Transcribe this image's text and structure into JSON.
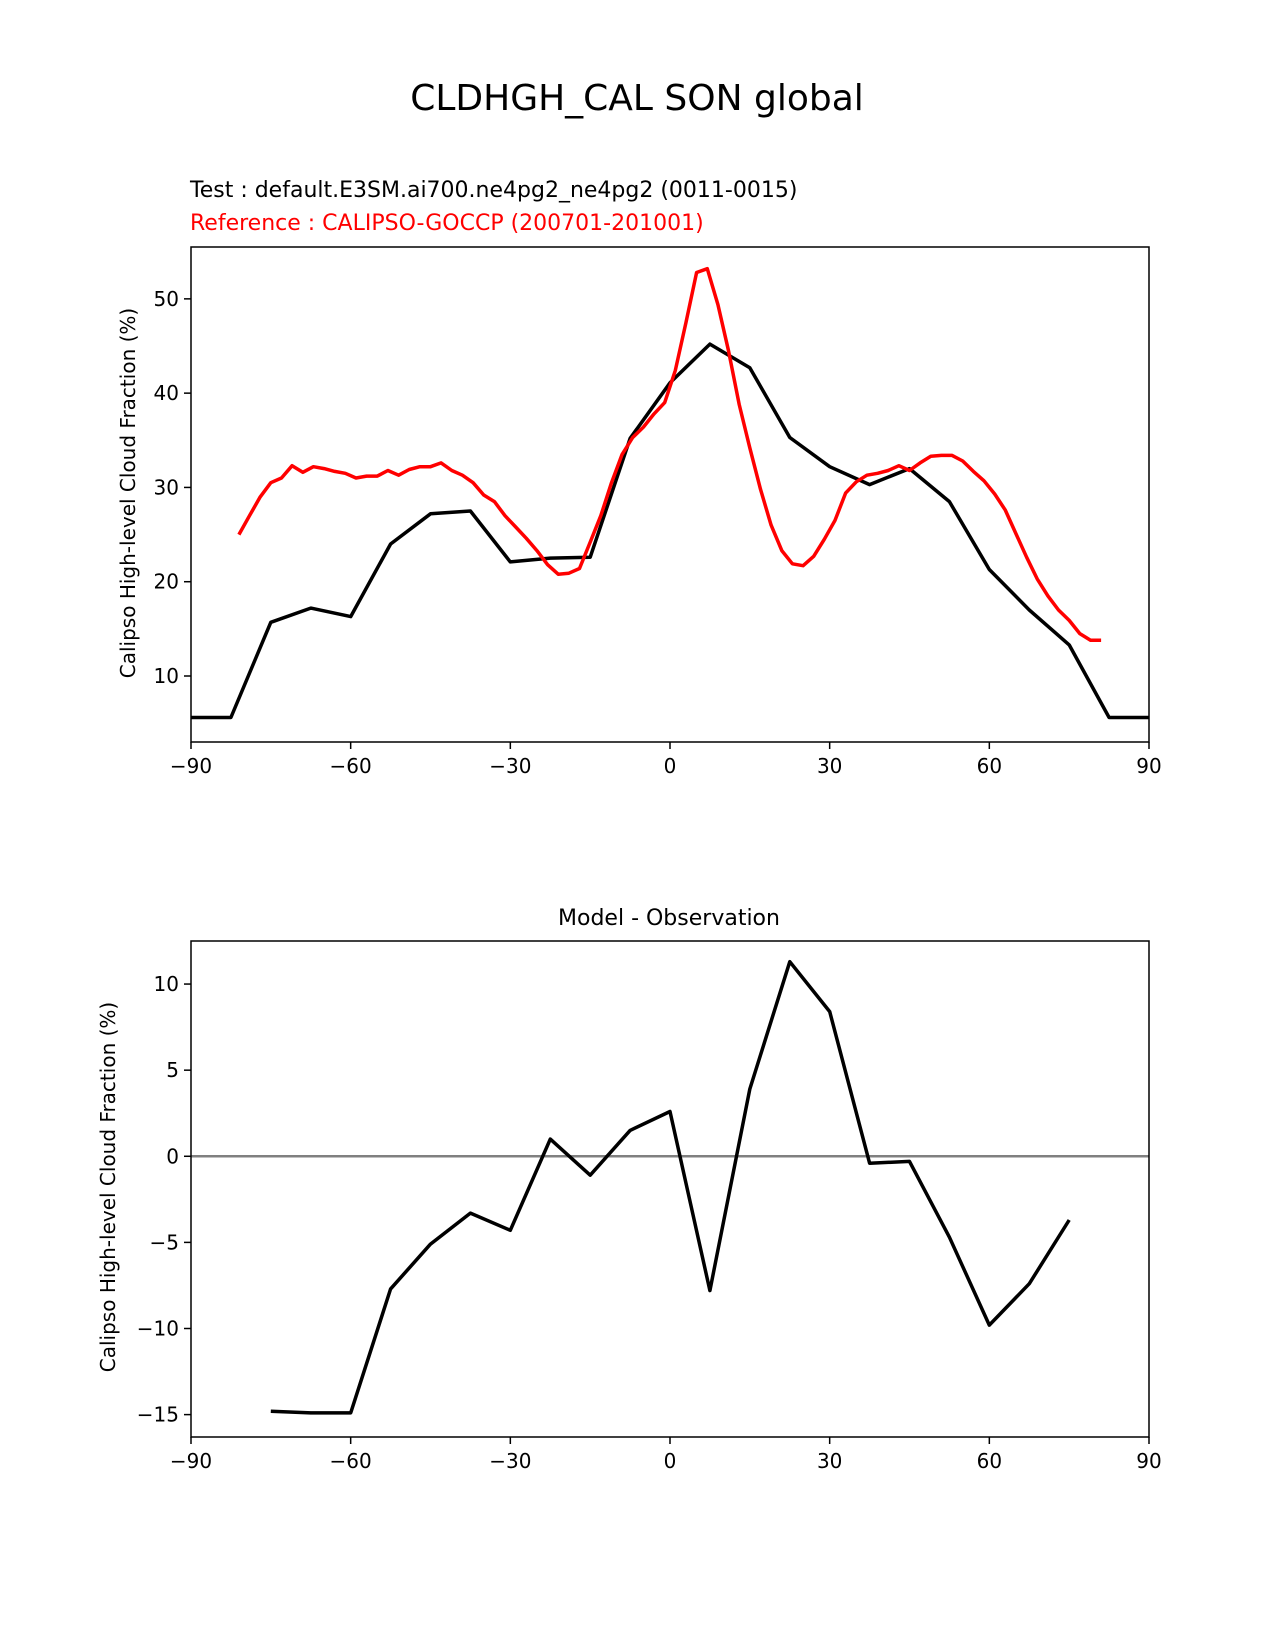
{
  "figure": {
    "suptitle": "CLDHGH_CAL SON global"
  },
  "colors": {
    "test": "#000000",
    "reference": "#ff0000",
    "zero_line": "#808080"
  },
  "chart_data": [
    {
      "type": "line",
      "test_label": "Test : default.E3SM.ai700.ne4pg2_ne4pg2 (0011-0015)",
      "reference_label": "Reference : CALIPSO-GOCCP (200701-201001)",
      "xlabel": "",
      "ylabel": "Calipso High-level Cloud Fraction (%)",
      "xlim": [
        -90,
        90
      ],
      "ylim": [
        3,
        55.5
      ],
      "xticks": [
        "−90",
        "−60",
        "−30",
        "0",
        "30",
        "60",
        "90"
      ],
      "yticks": [
        10,
        20,
        30,
        40,
        50
      ],
      "grid": false,
      "series": [
        {
          "role": "test",
          "x": [
            -90,
            -82.5,
            -75,
            -67.5,
            -60,
            -52.5,
            -45,
            -37.5,
            -30,
            -22.5,
            -15,
            -7.5,
            0,
            7.5,
            15,
            22.5,
            30,
            37.5,
            45,
            52.5,
            60,
            67.5,
            75,
            82.5,
            90
          ],
          "y": [
            5.6,
            5.6,
            15.7,
            17.2,
            16.3,
            24.0,
            27.2,
            27.5,
            22.1,
            22.5,
            22.6,
            35.2,
            41.1,
            45.2,
            42.7,
            35.3,
            32.2,
            30.3,
            32.0,
            28.5,
            21.3,
            17.0,
            13.3,
            5.6,
            5.6
          ]
        },
        {
          "role": "reference",
          "x": [
            -81,
            -79,
            -77,
            -75,
            -73,
            -71,
            -69,
            -67,
            -65,
            -63,
            -61,
            -59,
            -57,
            -55,
            -53,
            -51,
            -49,
            -47,
            -45,
            -43,
            -41,
            -39,
            -37,
            -35,
            -33,
            -31,
            -29,
            -27,
            -25,
            -23,
            -21,
            -19,
            -17,
            -15,
            -13,
            -11,
            -9,
            -7,
            -5,
            -3,
            -1,
            1,
            3,
            5,
            7,
            9,
            11,
            13,
            15,
            17,
            19,
            21,
            23,
            25,
            27,
            29,
            31,
            33,
            35,
            37,
            39,
            41,
            43,
            45,
            47,
            49,
            51,
            53,
            55,
            57,
            59,
            61,
            63,
            65,
            67,
            69,
            71,
            73,
            75,
            77,
            79,
            81
          ],
          "y": [
            25.0,
            27.0,
            29.0,
            30.5,
            31.0,
            32.3,
            31.6,
            32.2,
            32.0,
            31.7,
            31.5,
            31.0,
            31.2,
            31.2,
            31.8,
            31.3,
            31.9,
            32.2,
            32.2,
            32.6,
            31.8,
            31.3,
            30.5,
            29.2,
            28.5,
            27.0,
            25.8,
            24.6,
            23.3,
            21.8,
            20.8,
            20.9,
            21.4,
            24.2,
            27.0,
            30.5,
            33.5,
            35.3,
            36.4,
            37.8,
            39.0,
            42.4,
            47.5,
            52.8,
            53.2,
            49.4,
            44.5,
            38.8,
            34.2,
            29.8,
            26.0,
            23.3,
            21.9,
            21.7,
            22.7,
            24.5,
            26.5,
            29.4,
            30.6,
            31.3,
            31.5,
            31.8,
            32.3,
            31.8,
            32.6,
            33.3,
            33.4,
            33.4,
            32.8,
            31.7,
            30.7,
            29.3,
            27.6,
            25.1,
            22.6,
            20.3,
            18.5,
            17.0,
            15.9,
            14.5,
            13.8,
            13.8
          ]
        }
      ]
    },
    {
      "type": "line",
      "title": "Model - Observation",
      "xlabel": "",
      "ylabel": "Calipso High-level Cloud Fraction (%)",
      "xlim": [
        -90,
        90
      ],
      "ylim": [
        -16.3,
        12.5
      ],
      "xticks": [
        "−90",
        "−60",
        "−30",
        "0",
        "30",
        "60",
        "90"
      ],
      "yticks": [
        "10",
        "5",
        "0",
        "−5",
        "−10",
        "−15"
      ],
      "ytick_values": [
        10,
        5,
        0,
        -5,
        -10,
        -15
      ],
      "zero_line": 0,
      "grid": false,
      "series": [
        {
          "role": "difference",
          "x": [
            -75,
            -67.5,
            -60,
            -52.5,
            -45,
            -37.5,
            -30,
            -22.5,
            -15,
            -7.5,
            0,
            7.5,
            15,
            22.5,
            30,
            37.5,
            45,
            52.5,
            60,
            67.5,
            75
          ],
          "y": [
            -14.8,
            -14.9,
            -14.9,
            -7.7,
            -5.1,
            -3.3,
            -4.3,
            1.0,
            -1.1,
            1.5,
            2.6,
            -7.8,
            3.9,
            11.3,
            8.4,
            -0.4,
            -0.3,
            -4.7,
            -9.8,
            -7.4,
            -3.7
          ]
        }
      ]
    }
  ]
}
